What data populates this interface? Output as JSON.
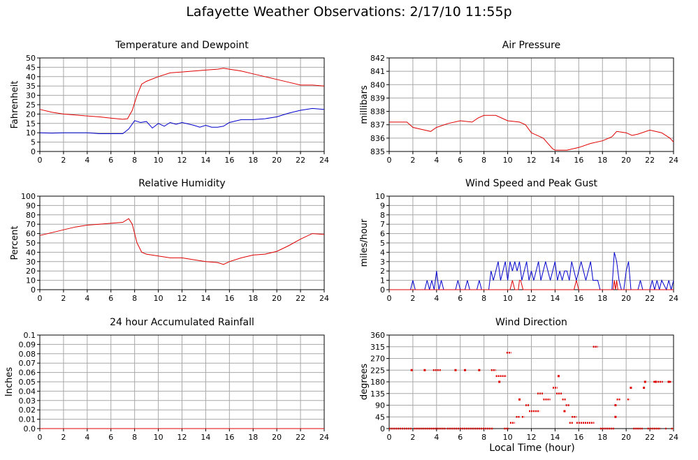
{
  "title": "Lafayette Weather Observations: 2/17/10 11:55p",
  "xlabel": "Local Time (hour)",
  "colors": {
    "red": "#e00000",
    "blue": "#0000cc",
    "grid": "#a8a8a8",
    "axis": "#000000"
  },
  "chart_data": [
    {
      "type": "line",
      "title": "Temperature and Dewpoint",
      "ylabel": "Fahrenheit",
      "xlim": [
        0,
        24
      ],
      "ylim": [
        0,
        50
      ],
      "xticks": [
        0,
        2,
        4,
        6,
        8,
        10,
        12,
        14,
        16,
        18,
        20,
        22,
        24
      ],
      "yticks": [
        0,
        5,
        10,
        15,
        20,
        25,
        30,
        35,
        40,
        45,
        50
      ],
      "grid": true,
      "series": [
        {
          "color": "red",
          "x": [
            0,
            1,
            2,
            3,
            4,
            5,
            6,
            7,
            7.4,
            7.8,
            8.2,
            8.6,
            9,
            10,
            11,
            12,
            13,
            14,
            15,
            15.5,
            16,
            17,
            18,
            19,
            20,
            21,
            22,
            23,
            24
          ],
          "y": [
            22.5,
            21,
            20,
            19.5,
            19,
            18.5,
            17.8,
            17.2,
            17.5,
            22,
            30,
            36,
            37.5,
            40,
            42,
            42.5,
            43,
            43.5,
            44,
            44.5,
            44,
            43,
            41.5,
            40,
            38.5,
            37,
            35.5,
            35.5,
            35
          ]
        },
        {
          "color": "blue",
          "x": [
            0,
            1,
            2,
            3,
            4,
            5,
            6,
            7,
            7.5,
            8,
            8.5,
            9,
            9.5,
            10,
            10.5,
            11,
            11.5,
            12,
            13,
            13.5,
            14,
            14.5,
            15,
            15.5,
            16,
            17,
            18,
            19,
            20,
            21,
            22,
            23,
            24
          ],
          "y": [
            10,
            9.8,
            10,
            10,
            10,
            9.5,
            9.5,
            9.5,
            12,
            16.5,
            15.5,
            16,
            12.5,
            15,
            13.5,
            15.5,
            14.5,
            15.5,
            14,
            13,
            14,
            13,
            13,
            13.5,
            15.5,
            17,
            17,
            17.5,
            18.5,
            20.5,
            22,
            23,
            22.5
          ]
        }
      ]
    },
    {
      "type": "line",
      "title": "Air Pressure",
      "ylabel": "millibars",
      "xlim": [
        0,
        24
      ],
      "ylim": [
        835,
        842
      ],
      "xticks": [
        0,
        2,
        4,
        6,
        8,
        10,
        12,
        14,
        16,
        18,
        20,
        22,
        24
      ],
      "yticks": [
        835,
        836,
        837,
        838,
        839,
        840,
        841,
        842
      ],
      "grid": true,
      "series": [
        {
          "color": "red",
          "x": [
            0,
            1.5,
            2,
            3,
            3.5,
            4,
            5,
            6,
            7,
            7.5,
            8,
            9,
            10,
            11,
            11.5,
            12,
            13,
            13.8,
            14,
            15,
            16,
            17,
            18,
            18.8,
            19.2,
            20,
            20.5,
            21,
            22,
            23,
            23.7,
            24
          ],
          "y": [
            837.2,
            837.2,
            836.8,
            836.6,
            836.5,
            836.8,
            837.1,
            837.3,
            837.2,
            837.5,
            837.7,
            837.7,
            837.3,
            837.2,
            837,
            836.4,
            836,
            835.2,
            835.1,
            835.1,
            835.3,
            835.6,
            835.8,
            836.1,
            836.5,
            836.4,
            836.2,
            836.3,
            836.6,
            836.4,
            836,
            835.7
          ]
        }
      ]
    },
    {
      "type": "line",
      "title": "Relative Humidity",
      "ylabel": "Percent",
      "xlim": [
        0,
        24
      ],
      "ylim": [
        0,
        100
      ],
      "xticks": [
        0,
        2,
        4,
        6,
        8,
        10,
        12,
        14,
        16,
        18,
        20,
        22,
        24
      ],
      "yticks": [
        0,
        10,
        20,
        30,
        40,
        50,
        60,
        70,
        80,
        90,
        100
      ],
      "grid": true,
      "series": [
        {
          "color": "red",
          "x": [
            0,
            1,
            2,
            3,
            4,
            5,
            6,
            7,
            7.5,
            7.8,
            8.2,
            8.6,
            9,
            10,
            11,
            12,
            13,
            14,
            15,
            15.5,
            16,
            17,
            18,
            19,
            20,
            21,
            22,
            23,
            24
          ],
          "y": [
            58,
            61,
            64,
            67,
            69,
            70,
            71,
            72,
            76,
            70,
            50,
            40,
            38,
            36,
            34,
            34,
            32,
            30,
            29,
            27,
            30,
            34,
            37,
            38,
            41,
            47,
            54,
            60,
            59
          ]
        }
      ]
    },
    {
      "type": "line",
      "title": "Wind Speed and Peak Gust",
      "ylabel": "miles/hour",
      "xlim": [
        0,
        24
      ],
      "ylim": [
        0,
        10
      ],
      "xticks": [
        0,
        2,
        4,
        6,
        8,
        10,
        12,
        14,
        16,
        18,
        20,
        22,
        24
      ],
      "yticks": [
        0,
        1,
        2,
        3,
        4,
        5,
        6,
        7,
        8,
        9,
        10
      ],
      "grid": true,
      "series": [
        {
          "color": "blue",
          "x": [
            0,
            1.8,
            2,
            2.2,
            3,
            3.2,
            3.4,
            3.6,
            3.8,
            4,
            4.2,
            4.4,
            4.6,
            5,
            5.6,
            5.8,
            6,
            6.4,
            6.6,
            6.8,
            7.4,
            7.6,
            7.8,
            8.4,
            8.6,
            8.8,
            9,
            9.2,
            9.4,
            9.6,
            9.8,
            10,
            10.2,
            10.4,
            10.6,
            10.8,
            11,
            11.2,
            11.4,
            11.6,
            11.8,
            12,
            12.2,
            12.4,
            12.6,
            12.8,
            13,
            13.2,
            13.4,
            13.6,
            13.8,
            14,
            14.2,
            14.4,
            14.6,
            14.8,
            15,
            15.2,
            15.4,
            15.6,
            15.8,
            16,
            16.2,
            16.4,
            16.6,
            16.8,
            17,
            17.2,
            17.6,
            17.8,
            18,
            18.6,
            18.8,
            19,
            19.2,
            19.4,
            19.6,
            19.8,
            20,
            20.2,
            20.4,
            21,
            21.2,
            21.4,
            22,
            22.2,
            22.4,
            22.6,
            22.8,
            23,
            23.4,
            23.6,
            23.8,
            24
          ],
          "y": [
            0,
            0,
            1,
            0,
            0,
            1,
            0,
            1,
            0,
            2,
            0,
            1,
            0,
            0,
            0,
            1,
            0,
            0,
            1,
            0,
            0,
            1,
            0,
            0,
            2,
            1,
            2,
            3,
            1,
            2,
            3,
            1,
            3,
            2,
            3,
            2,
            3,
            1,
            2,
            3,
            1,
            2,
            1,
            2,
            3,
            1,
            2,
            3,
            2,
            1,
            2,
            3,
            1,
            2,
            1,
            2,
            2,
            1,
            3,
            2,
            1,
            2,
            3,
            2,
            1,
            2,
            3,
            1,
            1,
            0,
            0,
            0,
            0,
            4,
            3,
            1,
            0,
            0,
            2,
            3,
            0,
            0,
            1,
            0,
            0,
            1,
            0,
            1,
            0,
            1,
            0,
            1,
            0,
            1
          ]
        },
        {
          "color": "red",
          "x": [
            0,
            10.2,
            10.4,
            10.6,
            10.9,
            11,
            11.1,
            11.3,
            15.6,
            15.8,
            16,
            18.9,
            19,
            19.1,
            19.2,
            19.3,
            19.5,
            24
          ],
          "y": [
            0,
            0,
            1,
            0,
            0,
            1,
            1,
            0,
            0,
            1,
            0,
            0,
            1,
            0,
            1,
            0,
            0,
            0
          ]
        }
      ]
    },
    {
      "type": "line",
      "title": "24 hour Accumulated Rainfall",
      "ylabel": "Inches",
      "xlim": [
        0,
        24
      ],
      "ylim": [
        0,
        0.1
      ],
      "xticks": [
        0,
        2,
        4,
        6,
        8,
        10,
        12,
        14,
        16,
        18,
        20,
        22,
        24
      ],
      "yticks": [
        0.0,
        0.01,
        0.02,
        0.03,
        0.04,
        0.05,
        0.06,
        0.07,
        0.08,
        0.09,
        0.1
      ],
      "ytick_labels": [
        "0.0",
        "0.01",
        "0.02",
        "0.03",
        "0.04",
        "0.05",
        "0.06",
        "0.07",
        "0.08",
        "0.09",
        "0.1"
      ],
      "grid": true,
      "series": [
        {
          "color": "red",
          "x": [
            0,
            24
          ],
          "y": [
            0,
            0
          ]
        }
      ]
    },
    {
      "type": "scatter",
      "title": "Wind Direction",
      "ylabel": "degrees",
      "xlim": [
        0,
        24
      ],
      "ylim": [
        0,
        360
      ],
      "xticks": [
        0,
        2,
        4,
        6,
        8,
        10,
        12,
        14,
        16,
        18,
        20,
        22,
        24
      ],
      "yticks": [
        0,
        45,
        90,
        135,
        180,
        225,
        270,
        315,
        360
      ],
      "grid": true,
      "series": [
        {
          "color": "red",
          "segments": [
            [
              0,
              1.9,
              0
            ],
            [
              2.1,
              4.8,
              0
            ],
            [
              4.9,
              8.8,
              0
            ],
            [
              9.7,
              10.1,
              0
            ],
            [
              17.8,
              19.0,
              0
            ],
            [
              20.6,
              21.4,
              0
            ],
            [
              21.8,
              22.9,
              0
            ],
            [
              23.3,
              23.4,
              0
            ],
            [
              23.8,
              24,
              0
            ],
            [
              9.9,
              10.3,
              292
            ],
            [
              17.2,
              17.6,
              315
            ],
            [
              8.6,
              9.0,
              225
            ],
            [
              3.7,
              4.4,
              225
            ],
            [
              9.0,
              9.9,
              202
            ],
            [
              10.2,
              10.6,
              22
            ],
            [
              10.7,
              11.0,
              45
            ],
            [
              11.2,
              11.4,
              45
            ],
            [
              11.5,
              11.8,
              90
            ],
            [
              11.8,
              12.7,
              67
            ],
            [
              12.5,
              13.0,
              135
            ],
            [
              13.0,
              13.6,
              112
            ],
            [
              13.8,
              14.2,
              157
            ],
            [
              14.1,
              14.6,
              135
            ],
            [
              14.6,
              14.9,
              112
            ],
            [
              14.9,
              15.2,
              90
            ],
            [
              15.2,
              15.5,
              22
            ],
            [
              15.4,
              15.8,
              45
            ],
            [
              15.8,
              17.3,
              22
            ],
            [
              19.2,
              19.5,
              112
            ],
            [
              20.1,
              20.3,
              112
            ],
            [
              22.3,
              23.1,
              180
            ],
            [
              23.5,
              23.8,
              180
            ]
          ],
          "points": [
            [
              1.9,
              225
            ],
            [
              3.0,
              225
            ],
            [
              5.6,
              225
            ],
            [
              6.4,
              225
            ],
            [
              7.6,
              225
            ],
            [
              9.3,
              180
            ],
            [
              11.0,
              112
            ],
            [
              14.3,
              202
            ],
            [
              14.8,
              67
            ],
            [
              19.1,
              45
            ],
            [
              19.1,
              90
            ],
            [
              20.4,
              157
            ],
            [
              21.6,
              180
            ],
            [
              21.5,
              157
            ],
            [
              22.5,
              180
            ],
            [
              23.6,
              180
            ]
          ]
        }
      ]
    }
  ]
}
